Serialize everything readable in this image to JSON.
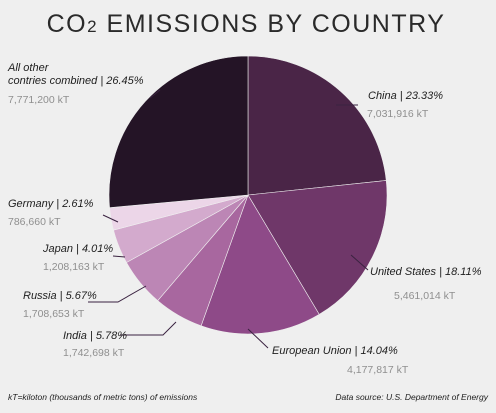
{
  "chart_data": {
    "type": "pie",
    "title": "CO",
    "title_subscript": "2",
    "title_rest": " EMISSIONS BY COUNTRY",
    "slices": [
      {
        "label": "China | 23.33%",
        "value": 23.33,
        "amount": "7,031,916 kT",
        "color": "#4a2547"
      },
      {
        "label": "United States | 18.11%",
        "value": 18.11,
        "amount": "5,461,014 kT",
        "color": "#6f3769"
      },
      {
        "label": "European Union | 14.04%",
        "value": 14.04,
        "amount": "4,177,817 kT",
        "color": "#8e4a88"
      },
      {
        "label": "India | 5.78%",
        "value": 5.78,
        "amount": "1,742,698 kT",
        "color": "#a8679f"
      },
      {
        "label": "Russia | 5.67%",
        "value": 5.67,
        "amount": "1,708,653 kT",
        "color": "#bc86b5"
      },
      {
        "label": "Japan | 4.01%",
        "value": 4.01,
        "amount": "1,208,163 kT",
        "color": "#d3aacd"
      },
      {
        "label": "Germany | 2.61%",
        "value": 2.61,
        "amount": "786,660 kT",
        "color": "#ecd6e8"
      },
      {
        "label": "All other contries combined | 26.45%",
        "label_lines": [
          "All other",
          "contries combined | 26.45%"
        ],
        "value": 26.45,
        "amount": "7,771,200 kT",
        "color": "#241426"
      }
    ],
    "footnote": "kT=kiloton (thousands of metric tons) of emissions",
    "source": "Data source: U.S. Department of Energy"
  }
}
